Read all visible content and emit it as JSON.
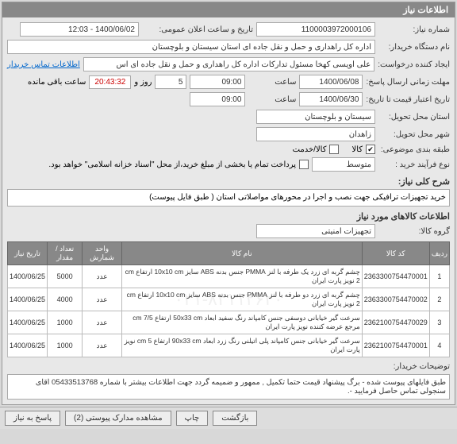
{
  "header": {
    "title": "اطلاعات نیاز"
  },
  "fields": {
    "need_no_label": "شماره نیاز:",
    "need_no": "1100003972000106",
    "pub_time_label": "تاریخ و ساعت اعلان عمومی:",
    "pub_time": "1400/06/02 - 12:03",
    "buyer_label": "نام دستگاه خریدار:",
    "buyer": "اداره کل راهداری و حمل و نقل جاده ای استان سیستان و بلوچستان",
    "creator_label": "ایجاد کننده درخواست:",
    "creator": "علی اویسی کهخا مسئول تدارکات اداره کل راهداری و حمل و نقل جاده ای اس",
    "contact_link": "اطلاعات تماس خریدار",
    "deadline_label": "مهلت زمانی ارسال پاسخ:",
    "deadline_date": "1400/06/08",
    "hour_label": "ساعت",
    "deadline_hour": "09:00",
    "days_val": "5",
    "day_word": "روز و",
    "countdown": "20:43:32",
    "remain": "ساعت باقی مانده",
    "price_valid_label": "تاریخ اعتبار قیمت تا تاریخ:",
    "price_date": "1400/06/30",
    "price_hour": "09:00",
    "province_label": "استان محل تحویل:",
    "province": "سیستان و بلوچستان",
    "city_label": "شهر محل تحویل:",
    "city": "زاهدان",
    "subject_class_label": "طبقه بندی موضوعی:",
    "kala_label": "کالا",
    "service_label": "کالا/خدمت",
    "process_label": "نوع فرآیند خرید :",
    "partial_pay": "پرداخت تمام یا بخشی از مبلغ خرید،از محل \"اسناد خزانه اسلامی\" خواهد بود.",
    "different_label": "متوسط"
  },
  "need_desc": {
    "title": "شرح کلی نیاز:",
    "text": "خرید تجهیزات ترافیکی جهت نصب و اجرا در محورهای مواصلاتی استان ( طبق فایل پیوست)"
  },
  "items_header": "اطلاعات کالاهای مورد نیاز",
  "group_label": "گروه کالا:",
  "group_val": "تجهیزات امنیتی",
  "watermark": "۰۲۱-۸۳۱۱۲۶۲۰",
  "table": {
    "cols": {
      "row": "ردیف",
      "code": "کد کالا",
      "name": "نام کالا",
      "unit": "واحد شمارش",
      "qty": "تعداد / مقدار",
      "date": "تاریخ نیاز"
    },
    "rows": [
      {
        "n": "1",
        "code": "2363300754470001",
        "name": "چشم گربه ای زرد یک طرفه با لنز PMMA جنس بدنه ABS سایز 10x10 cm ارتفاع cm 2 نویز پارت ایران",
        "unit": "عدد",
        "qty": "5000",
        "date": "1400/06/25"
      },
      {
        "n": "2",
        "code": "2363300754470002",
        "name": "چشم گربه ای زرد دو طرفه با لنز PMMA جنس بدنه ABS سایز 10x10 cm ارتفاع cm 2 نویز پارت ایران",
        "unit": "عدد",
        "qty": "4000",
        "date": "1400/06/25"
      },
      {
        "n": "3",
        "code": "2362100754470029",
        "name": "سرعت گیر خیابانی دوسفی جنس کامپاند رنگ سفید ابعاد 50x33 cm ارتفاع 7/5 cm مرجع عرضه کننده نویز پارت ایران",
        "unit": "عدد",
        "qty": "1000",
        "date": "1400/06/25"
      },
      {
        "n": "4",
        "code": "2362100754470001",
        "name": "سرعت گیر خیابانی جنس کامپاند پلی اتیلنی رنگ زرد ابعاد 90x33 cm ارتفاع cm 5 نویز پارت ایران",
        "unit": "عدد",
        "qty": "1000",
        "date": "1400/06/25"
      }
    ]
  },
  "explain_label": "توضیحات خریدار:",
  "explain_text": "طبق فایلهای پیوست شده - برگ پیشنهاد قیمت حتما تکمیل , ممهور و ضمیمه گردد جهت اطلاعات بیشتر با شماره 05433513768 اقای سنجولی تماس حاصل فرمایید -.",
  "footer": {
    "close": "بازگشت",
    "print": "چاپ",
    "attach": "مشاهده مدارک پیوستی (2)",
    "reply": "پاسخ به نیاز"
  }
}
